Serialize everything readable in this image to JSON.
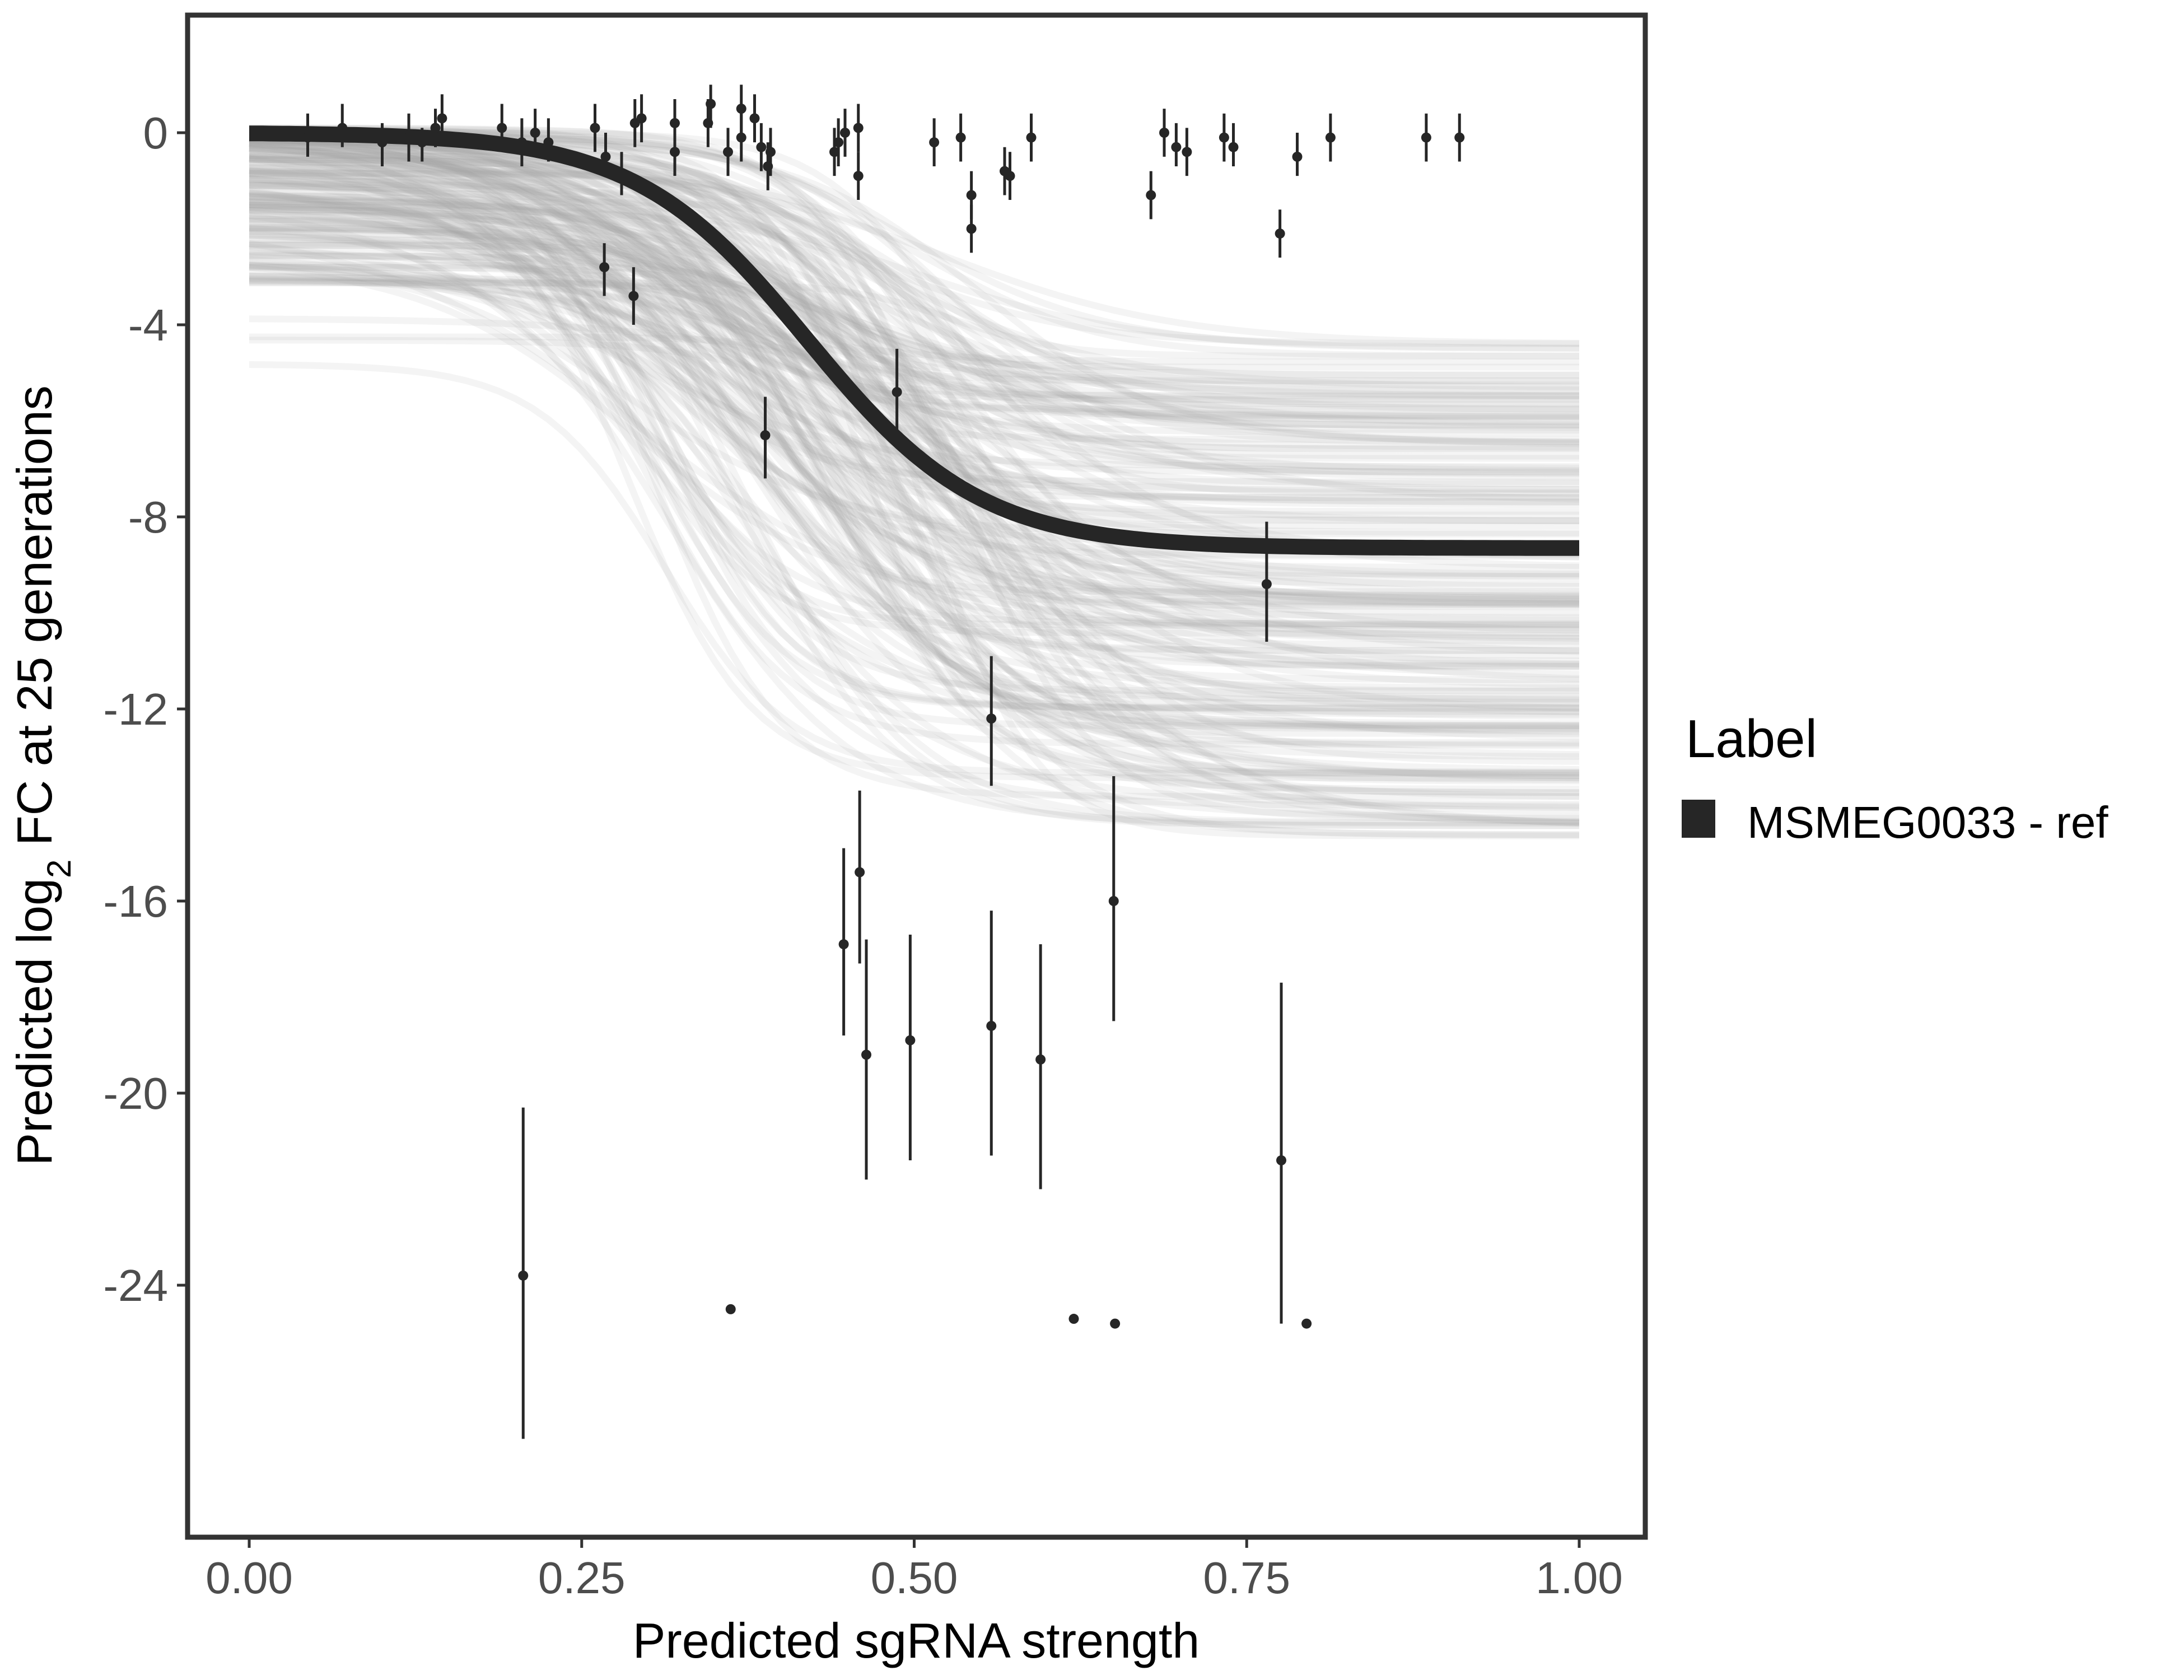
{
  "chart_data": {
    "type": "scatter",
    "title": "",
    "xlabel": "Predicted sgRNA strength",
    "ylabel_parts": {
      "before": "Predicted  log",
      "subscript": "2",
      "after": " FC at 25 generations"
    },
    "xlim": [
      -0.1,
      1.05
    ],
    "ylim": [
      -29.4,
      2.5
    ],
    "x_ticks": [
      0.0,
      0.25,
      0.5,
      0.75,
      1.0
    ],
    "x_tick_labels": [
      "0.00",
      "0.25",
      "0.50",
      "0.75",
      "1.00"
    ],
    "y_ticks": [
      0,
      -4,
      -8,
      -12,
      -16,
      -20,
      -24
    ],
    "y_tick_labels": [
      "0",
      "-4",
      "-8",
      "-12",
      "-16",
      "-20",
      "-24"
    ],
    "grid": false,
    "legend": {
      "title": "Label",
      "placement": "right",
      "entries": [
        {
          "label": "MSMEG0033 - ref",
          "color": "#262626"
        }
      ]
    },
    "colors": {
      "fit_line": "#262626",
      "posterior_lines": "#a6a6a6",
      "points": "#262626",
      "frame": "#333333"
    },
    "fit_curve": {
      "name": "MSMEG0033 - ref",
      "model": "logistic",
      "upper": 0.0,
      "lower": -8.65,
      "midpoint": 0.42,
      "scale": 0.065
    },
    "posterior_draws": {
      "count": 200,
      "upper_range": [
        -5.3,
        0.1
      ],
      "lower_range": [
        -14.7,
        -4.3
      ],
      "midpoint_range": [
        0.28,
        0.55
      ],
      "scale_range": [
        0.04,
        0.1
      ]
    },
    "points": [
      {
        "x": 0.044,
        "y": -0.1,
        "lo": -0.5,
        "hi": 0.4
      },
      {
        "x": 0.07,
        "y": 0.1,
        "lo": -0.3,
        "hi": 0.6
      },
      {
        "x": 0.1,
        "y": -0.2,
        "lo": -0.7,
        "hi": 0.2
      },
      {
        "x": 0.12,
        "y": -0.1,
        "lo": -0.6,
        "hi": 0.4
      },
      {
        "x": 0.13,
        "y": -0.2,
        "lo": -0.6,
        "hi": 0.1
      },
      {
        "x": 0.14,
        "y": 0.1,
        "lo": -0.3,
        "hi": 0.5
      },
      {
        "x": 0.145,
        "y": 0.3,
        "lo": -0.2,
        "hi": 0.8
      },
      {
        "x": 0.19,
        "y": 0.1,
        "lo": -0.4,
        "hi": 0.6
      },
      {
        "x": 0.205,
        "y": -0.2,
        "lo": -0.7,
        "hi": 0.3
      },
      {
        "x": 0.215,
        "y": 0.0,
        "lo": -0.4,
        "hi": 0.5
      },
      {
        "x": 0.225,
        "y": -0.2,
        "lo": -0.6,
        "hi": 0.3
      },
      {
        "x": 0.26,
        "y": 0.1,
        "lo": -0.4,
        "hi": 0.6
      },
      {
        "x": 0.268,
        "y": -0.5,
        "lo": -0.9,
        "hi": 0.0
      },
      {
        "x": 0.28,
        "y": -0.9,
        "lo": -1.3,
        "hi": -0.4
      },
      {
        "x": 0.29,
        "y": 0.2,
        "lo": -0.3,
        "hi": 0.7
      },
      {
        "x": 0.295,
        "y": 0.3,
        "lo": -0.2,
        "hi": 0.8
      },
      {
        "x": 0.32,
        "y": 0.2,
        "lo": -0.3,
        "hi": 0.7
      },
      {
        "x": 0.32,
        "y": -0.4,
        "lo": -0.9,
        "hi": 0.1
      },
      {
        "x": 0.345,
        "y": 0.2,
        "lo": -0.3,
        "hi": 0.7
      },
      {
        "x": 0.347,
        "y": 0.6,
        "lo": 0.1,
        "hi": 1.0
      },
      {
        "x": 0.36,
        "y": -0.4,
        "lo": -0.9,
        "hi": 0.1
      },
      {
        "x": 0.37,
        "y": 0.5,
        "lo": 0.0,
        "hi": 1.0
      },
      {
        "x": 0.37,
        "y": -0.1,
        "lo": -0.6,
        "hi": 0.4
      },
      {
        "x": 0.38,
        "y": 0.3,
        "lo": -0.2,
        "hi": 0.8
      },
      {
        "x": 0.385,
        "y": -0.3,
        "lo": -0.8,
        "hi": 0.2
      },
      {
        "x": 0.39,
        "y": -0.7,
        "lo": -1.2,
        "hi": -0.2
      },
      {
        "x": 0.392,
        "y": -0.4,
        "lo": -0.9,
        "hi": 0.1
      },
      {
        "x": 0.44,
        "y": -0.4,
        "lo": -0.9,
        "hi": 0.1
      },
      {
        "x": 0.443,
        "y": -0.2,
        "lo": -0.7,
        "hi": 0.3
      },
      {
        "x": 0.448,
        "y": 0.0,
        "lo": -0.5,
        "hi": 0.5
      },
      {
        "x": 0.458,
        "y": 0.1,
        "lo": -0.4,
        "hi": 0.6
      },
      {
        "x": 0.458,
        "y": -0.9,
        "lo": -1.4,
        "hi": -0.4
      },
      {
        "x": 0.515,
        "y": -0.2,
        "lo": -0.7,
        "hi": 0.3
      },
      {
        "x": 0.535,
        "y": -0.1,
        "lo": -0.6,
        "hi": 0.4
      },
      {
        "x": 0.543,
        "y": -1.3,
        "lo": -1.8,
        "hi": -0.8
      },
      {
        "x": 0.543,
        "y": -2.0,
        "lo": -2.5,
        "hi": -1.5
      },
      {
        "x": 0.568,
        "y": -0.8,
        "lo": -1.3,
        "hi": -0.3
      },
      {
        "x": 0.572,
        "y": -0.9,
        "lo": -1.4,
        "hi": -0.4
      },
      {
        "x": 0.588,
        "y": -0.1,
        "lo": -0.6,
        "hi": 0.4
      },
      {
        "x": 0.678,
        "y": -1.3,
        "lo": -1.8,
        "hi": -0.8
      },
      {
        "x": 0.688,
        "y": 0.0,
        "lo": -0.5,
        "hi": 0.5
      },
      {
        "x": 0.697,
        "y": -0.3,
        "lo": -0.7,
        "hi": 0.2
      },
      {
        "x": 0.705,
        "y": -0.4,
        "lo": -0.9,
        "hi": 0.1
      },
      {
        "x": 0.733,
        "y": -0.1,
        "lo": -0.6,
        "hi": 0.4
      },
      {
        "x": 0.74,
        "y": -0.3,
        "lo": -0.7,
        "hi": 0.2
      },
      {
        "x": 0.775,
        "y": -2.1,
        "lo": -2.6,
        "hi": -1.6
      },
      {
        "x": 0.788,
        "y": -0.5,
        "lo": -0.9,
        "hi": 0.0
      },
      {
        "x": 0.813,
        "y": -0.1,
        "lo": -0.6,
        "hi": 0.4
      },
      {
        "x": 0.885,
        "y": -0.1,
        "lo": -0.6,
        "hi": 0.4
      },
      {
        "x": 0.91,
        "y": -0.1,
        "lo": -0.6,
        "hi": 0.4
      },
      {
        "x": 0.267,
        "y": -2.8,
        "lo": -3.4,
        "hi": -2.3
      },
      {
        "x": 0.289,
        "y": -3.4,
        "lo": -4.0,
        "hi": -2.8
      },
      {
        "x": 0.388,
        "y": -6.3,
        "lo": -7.2,
        "hi": -5.5
      },
      {
        "x": 0.487,
        "y": -5.4,
        "lo": -6.4,
        "hi": -4.5
      },
      {
        "x": 0.765,
        "y": -9.4,
        "lo": -10.6,
        "hi": -8.1
      },
      {
        "x": 0.558,
        "y": -12.2,
        "lo": -13.6,
        "hi": -10.9
      },
      {
        "x": 0.447,
        "y": -16.9,
        "lo": -18.8,
        "hi": -14.9
      },
      {
        "x": 0.459,
        "y": -15.4,
        "lo": -17.3,
        "hi": -13.7
      },
      {
        "x": 0.464,
        "y": -19.2,
        "lo": -21.8,
        "hi": -16.8
      },
      {
        "x": 0.497,
        "y": -18.9,
        "lo": -21.4,
        "hi": -16.7
      },
      {
        "x": 0.558,
        "y": -18.6,
        "lo": -21.3,
        "hi": -16.2
      },
      {
        "x": 0.595,
        "y": -19.3,
        "lo": -22.0,
        "hi": -16.9
      },
      {
        "x": 0.65,
        "y": -16.0,
        "lo": -18.5,
        "hi": -13.4
      },
      {
        "x": 0.776,
        "y": -21.4,
        "lo": -24.8,
        "hi": -17.7
      },
      {
        "x": 0.206,
        "y": -23.8,
        "lo": -27.2,
        "hi": -20.3
      },
      {
        "x": 0.362,
        "y": -24.5,
        "lo": -24.5,
        "hi": -24.5
      },
      {
        "x": 0.62,
        "y": -24.7,
        "lo": -24.7,
        "hi": -24.7
      },
      {
        "x": 0.651,
        "y": -24.8,
        "lo": -24.8,
        "hi": -24.8
      },
      {
        "x": 0.795,
        "y": -24.8,
        "lo": -24.8,
        "hi": -24.8
      }
    ]
  }
}
